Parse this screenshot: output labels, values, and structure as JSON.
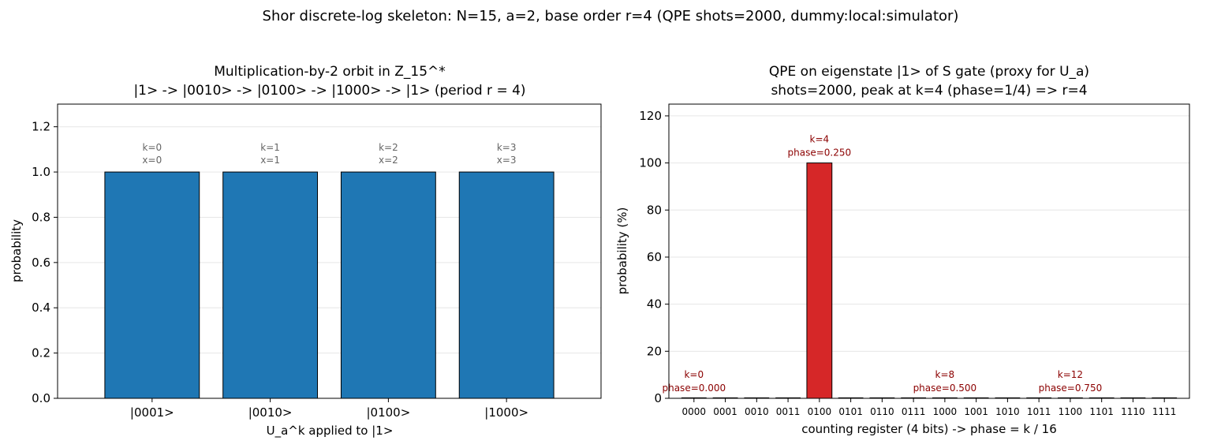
{
  "suptitle": "Shor discrete-log skeleton: N=15, a=2, base order r=4  (QPE shots=2000, dummy:local:simulator)",
  "colors": {
    "left_bar": "#1f77b4",
    "peak_bar": "#d62728",
    "bar_edge": "#000000",
    "left_annotation": "#666666",
    "right_annotation": "#8b0000",
    "grid": "#e6e6e6"
  },
  "chart_data": [
    {
      "type": "bar",
      "title_lines": [
        "Multiplication-by-2 orbit in Z_15^*",
        "|1> -> |0010> -> |0100> -> |1000> -> |1>   (period r = 4)"
      ],
      "xlabel": "U_a^k applied to |1>",
      "ylabel": "probability",
      "ylim": [
        0,
        1.3
      ],
      "yticks": [
        0.0,
        0.2,
        0.4,
        0.6,
        0.8,
        1.0,
        1.2
      ],
      "ytick_labels": [
        "0.0",
        "0.2",
        "0.4",
        "0.6",
        "0.8",
        "1.0",
        "1.2"
      ],
      "grid": "horizontal",
      "categories": [
        "|0001>",
        "|0010>",
        "|0100>",
        "|1000>"
      ],
      "values": [
        1.0,
        1.0,
        1.0,
        1.0
      ],
      "annotations": [
        [
          "k=0",
          "x=0"
        ],
        [
          "k=1",
          "x=1"
        ],
        [
          "k=2",
          "x=2"
        ],
        [
          "k=3",
          "x=3"
        ]
      ]
    },
    {
      "type": "bar",
      "title_lines": [
        "QPE on eigenstate |1> of S gate (proxy for U_a)",
        "shots=2000, peak at k=4 (phase=1/4) => r=4"
      ],
      "xlabel": "counting register (4 bits) -> phase = k / 16",
      "ylabel": "probability (%)",
      "ylim": [
        0,
        125
      ],
      "yticks": [
        0,
        20,
        40,
        60,
        80,
        100,
        120
      ],
      "ytick_labels": [
        "0",
        "20",
        "40",
        "60",
        "80",
        "100",
        "120"
      ],
      "grid": "horizontal",
      "categories": [
        "0000",
        "0001",
        "0010",
        "0011",
        "0100",
        "0101",
        "0110",
        "0111",
        "1000",
        "1001",
        "1010",
        "1011",
        "1100",
        "1101",
        "1110",
        "1111"
      ],
      "values": [
        0,
        0,
        0,
        0,
        100,
        0,
        0,
        0,
        0,
        0,
        0,
        0,
        0,
        0,
        0,
        0
      ],
      "peak_index": 4,
      "annotations": [
        {
          "index": 0,
          "lines": [
            "k=0",
            "phase=0.000"
          ]
        },
        {
          "index": 4,
          "lines": [
            "k=4",
            "phase=0.250"
          ]
        },
        {
          "index": 8,
          "lines": [
            "k=8",
            "phase=0.500"
          ]
        },
        {
          "index": 12,
          "lines": [
            "k=12",
            "phase=0.750"
          ]
        }
      ]
    }
  ]
}
